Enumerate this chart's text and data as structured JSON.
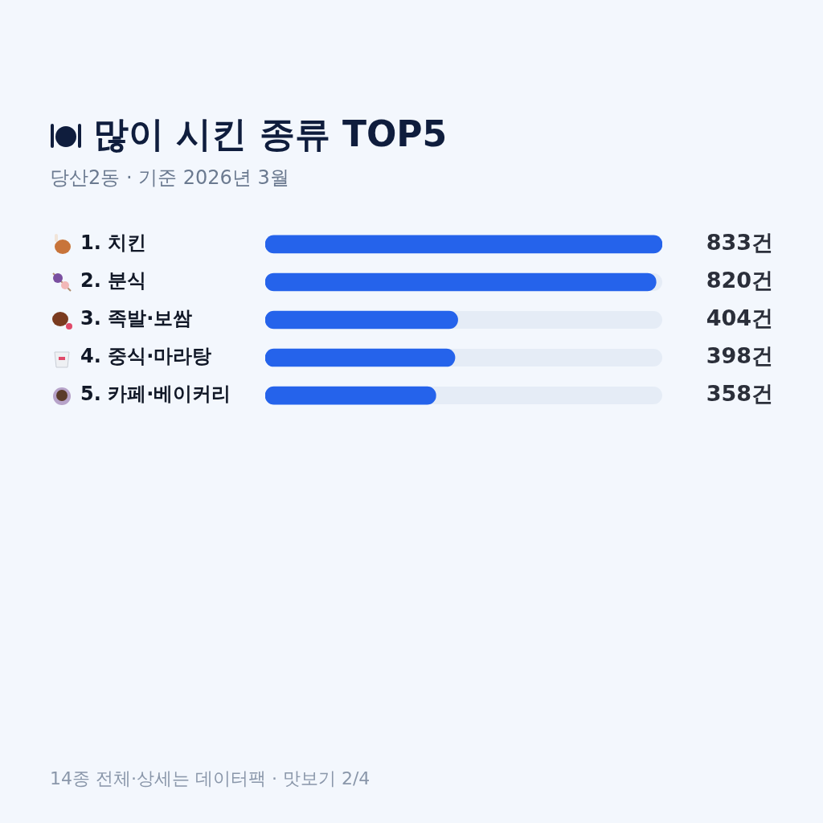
{
  "chart_data": {
    "type": "bar",
    "orientation": "horizontal",
    "title": "많이 시킨 종류 TOP5",
    "subtitle": "당산2동 · 기준 2026년 3월",
    "categories": [
      "1. 치킨",
      "2. 분식",
      "3. 족발·보쌈",
      "4. 중식·마라탕",
      "5. 카페·베이커리"
    ],
    "values": [
      833,
      820,
      404,
      398,
      358
    ],
    "value_labels": [
      "833건",
      "820건",
      "404건",
      "398건",
      "358건"
    ],
    "color": "#2563eb",
    "legend": false,
    "annotations": [
      "14종 전체·상세는 데이터팩 · 맛보기 2/4"
    ]
  }
}
